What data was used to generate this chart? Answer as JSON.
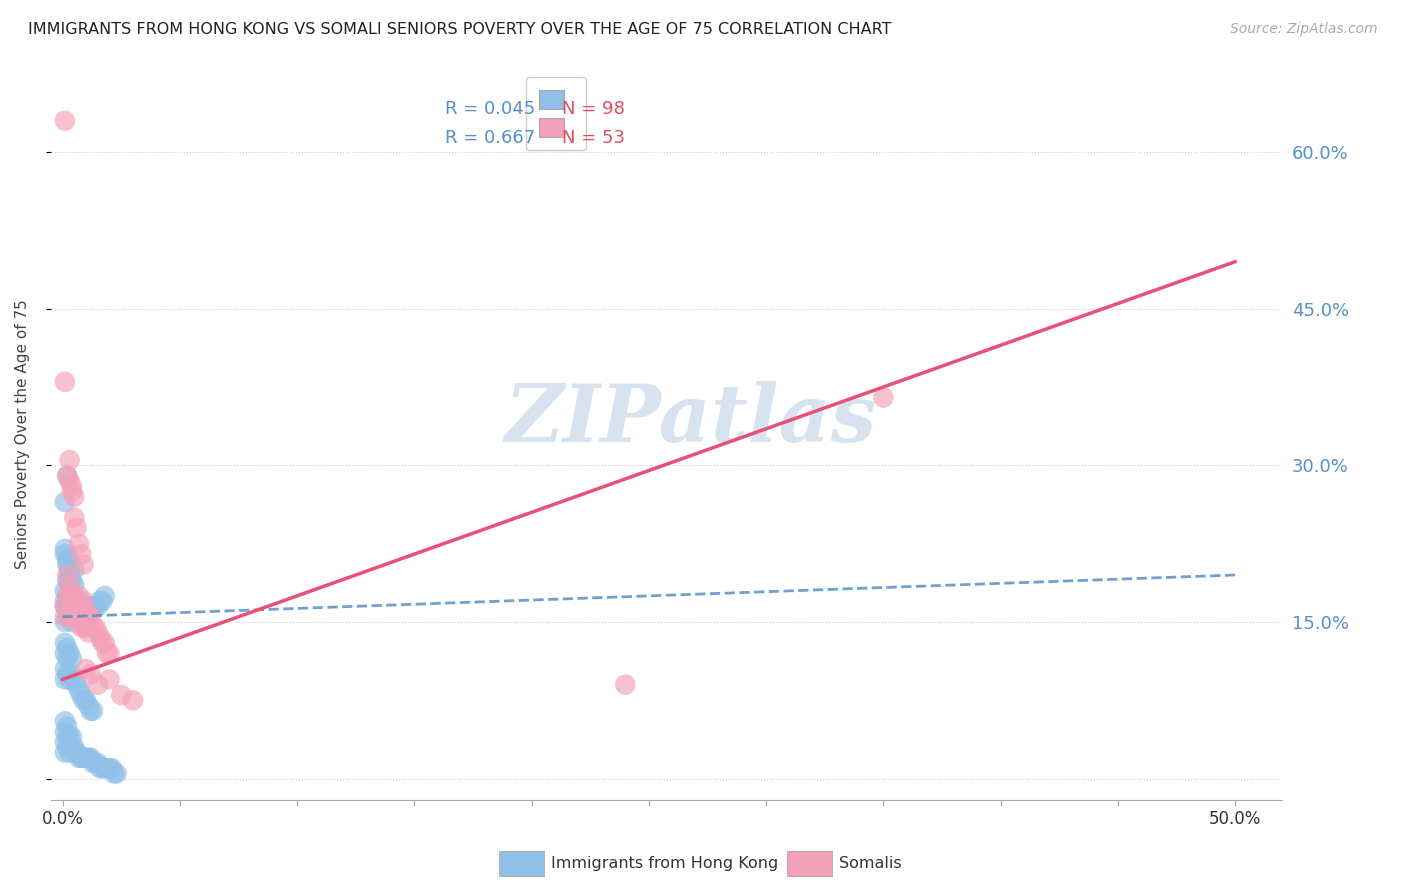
{
  "title": "IMMIGRANTS FROM HONG KONG VS SOMALI SENIORS POVERTY OVER THE AGE OF 75 CORRELATION CHART",
  "source": "Source: ZipAtlas.com",
  "ylabel": "Seniors Poverty Over the Age of 75",
  "xlim": [
    -0.005,
    0.52
  ],
  "ylim": [
    -0.02,
    0.68
  ],
  "yticks": [
    0.0,
    0.15,
    0.3,
    0.45,
    0.6
  ],
  "ytick_labels": [
    "",
    "15.0%",
    "30.0%",
    "45.0%",
    "60.0%"
  ],
  "xticks": [
    0.0,
    0.05,
    0.1,
    0.15,
    0.2,
    0.25,
    0.3,
    0.35,
    0.4,
    0.45,
    0.5
  ],
  "xtick_labels": [
    "0.0%",
    "",
    "",
    "",
    "",
    "",
    "",
    "",
    "",
    "",
    "50.0%"
  ],
  "hk_color": "#90c0e8",
  "somali_color": "#f4a0b8",
  "hk_line_color": "#5590c8",
  "somali_line_color": "#e8507a",
  "legend_R_hk": "R = 0.045",
  "legend_N_hk": "N = 98",
  "legend_R_somali": "R = 0.667",
  "legend_N_somali": "N = 53",
  "watermark": "ZIPatlas",
  "watermark_color": "#c8d8ea",
  "background_color": "#ffffff",
  "hk_scatter": [
    [
      0.003,
      0.2
    ],
    [
      0.005,
      0.2
    ],
    [
      0.003,
      0.175
    ],
    [
      0.003,
      0.21
    ],
    [
      0.002,
      0.175
    ],
    [
      0.004,
      0.175
    ],
    [
      0.005,
      0.185
    ],
    [
      0.004,
      0.19
    ],
    [
      0.001,
      0.18
    ],
    [
      0.002,
      0.19
    ],
    [
      0.003,
      0.155
    ],
    [
      0.006,
      0.165
    ],
    [
      0.001,
      0.165
    ],
    [
      0.001,
      0.17
    ],
    [
      0.002,
      0.16
    ],
    [
      0.002,
      0.17
    ],
    [
      0.003,
      0.165
    ],
    [
      0.004,
      0.16
    ],
    [
      0.002,
      0.155
    ],
    [
      0.001,
      0.15
    ],
    [
      0.003,
      0.155
    ],
    [
      0.004,
      0.155
    ],
    [
      0.005,
      0.165
    ],
    [
      0.006,
      0.165
    ],
    [
      0.007,
      0.17
    ],
    [
      0.005,
      0.16
    ],
    [
      0.004,
      0.15
    ],
    [
      0.006,
      0.155
    ],
    [
      0.007,
      0.17
    ],
    [
      0.008,
      0.165
    ],
    [
      0.009,
      0.165
    ],
    [
      0.01,
      0.165
    ],
    [
      0.011,
      0.165
    ],
    [
      0.012,
      0.165
    ],
    [
      0.013,
      0.165
    ],
    [
      0.014,
      0.165
    ],
    [
      0.015,
      0.165
    ],
    [
      0.016,
      0.17
    ],
    [
      0.017,
      0.17
    ],
    [
      0.018,
      0.175
    ],
    [
      0.001,
      0.265
    ],
    [
      0.002,
      0.29
    ],
    [
      0.001,
      0.22
    ],
    [
      0.001,
      0.215
    ],
    [
      0.002,
      0.21
    ],
    [
      0.002,
      0.205
    ],
    [
      0.003,
      0.195
    ],
    [
      0.003,
      0.185
    ],
    [
      0.001,
      0.13
    ],
    [
      0.002,
      0.125
    ],
    [
      0.001,
      0.12
    ],
    [
      0.002,
      0.115
    ],
    [
      0.003,
      0.12
    ],
    [
      0.004,
      0.115
    ],
    [
      0.001,
      0.105
    ],
    [
      0.002,
      0.1
    ],
    [
      0.001,
      0.095
    ],
    [
      0.003,
      0.095
    ],
    [
      0.004,
      0.1
    ],
    [
      0.005,
      0.095
    ],
    [
      0.006,
      0.09
    ],
    [
      0.007,
      0.085
    ],
    [
      0.008,
      0.08
    ],
    [
      0.009,
      0.075
    ],
    [
      0.01,
      0.075
    ],
    [
      0.011,
      0.07
    ],
    [
      0.012,
      0.065
    ],
    [
      0.013,
      0.065
    ],
    [
      0.001,
      0.055
    ],
    [
      0.002,
      0.05
    ],
    [
      0.001,
      0.045
    ],
    [
      0.002,
      0.04
    ],
    [
      0.003,
      0.04
    ],
    [
      0.004,
      0.04
    ],
    [
      0.001,
      0.035
    ],
    [
      0.002,
      0.03
    ],
    [
      0.001,
      0.025
    ],
    [
      0.003,
      0.025
    ],
    [
      0.004,
      0.03
    ],
    [
      0.005,
      0.03
    ],
    [
      0.006,
      0.025
    ],
    [
      0.007,
      0.02
    ],
    [
      0.008,
      0.02
    ],
    [
      0.009,
      0.02
    ],
    [
      0.01,
      0.02
    ],
    [
      0.011,
      0.02
    ],
    [
      0.012,
      0.02
    ],
    [
      0.013,
      0.015
    ],
    [
      0.014,
      0.015
    ],
    [
      0.015,
      0.015
    ],
    [
      0.016,
      0.01
    ],
    [
      0.017,
      0.01
    ],
    [
      0.018,
      0.01
    ],
    [
      0.019,
      0.01
    ],
    [
      0.02,
      0.01
    ],
    [
      0.021,
      0.01
    ],
    [
      0.022,
      0.005
    ],
    [
      0.023,
      0.005
    ]
  ],
  "somali_scatter": [
    [
      0.001,
      0.155
    ],
    [
      0.001,
      0.165
    ],
    [
      0.002,
      0.175
    ],
    [
      0.002,
      0.195
    ],
    [
      0.003,
      0.185
    ],
    [
      0.003,
      0.155
    ],
    [
      0.003,
      0.175
    ],
    [
      0.004,
      0.165
    ],
    [
      0.004,
      0.155
    ],
    [
      0.005,
      0.175
    ],
    [
      0.005,
      0.16
    ],
    [
      0.006,
      0.17
    ],
    [
      0.006,
      0.155
    ],
    [
      0.007,
      0.175
    ],
    [
      0.007,
      0.155
    ],
    [
      0.008,
      0.165
    ],
    [
      0.008,
      0.145
    ],
    [
      0.009,
      0.17
    ],
    [
      0.009,
      0.145
    ],
    [
      0.01,
      0.16
    ],
    [
      0.01,
      0.145
    ],
    [
      0.011,
      0.155
    ],
    [
      0.011,
      0.14
    ],
    [
      0.012,
      0.155
    ],
    [
      0.013,
      0.145
    ],
    [
      0.014,
      0.145
    ],
    [
      0.015,
      0.14
    ],
    [
      0.016,
      0.135
    ],
    [
      0.017,
      0.13
    ],
    [
      0.018,
      0.13
    ],
    [
      0.019,
      0.12
    ],
    [
      0.02,
      0.12
    ],
    [
      0.001,
      0.38
    ],
    [
      0.003,
      0.285
    ],
    [
      0.004,
      0.275
    ],
    [
      0.003,
      0.305
    ],
    [
      0.005,
      0.25
    ],
    [
      0.006,
      0.24
    ],
    [
      0.007,
      0.225
    ],
    [
      0.008,
      0.215
    ],
    [
      0.009,
      0.205
    ],
    [
      0.002,
      0.29
    ],
    [
      0.004,
      0.28
    ],
    [
      0.005,
      0.27
    ],
    [
      0.01,
      0.105
    ],
    [
      0.012,
      0.1
    ],
    [
      0.015,
      0.09
    ],
    [
      0.02,
      0.095
    ],
    [
      0.025,
      0.08
    ],
    [
      0.03,
      0.075
    ],
    [
      0.24,
      0.09
    ],
    [
      0.35,
      0.365
    ],
    [
      0.001,
      0.63
    ]
  ],
  "hk_line": {
    "x0": 0.0,
    "x1": 0.5,
    "y0": 0.155,
    "y1": 0.195
  },
  "somali_line": {
    "x0": 0.0,
    "x1": 0.5,
    "y0": 0.095,
    "y1": 0.495
  }
}
